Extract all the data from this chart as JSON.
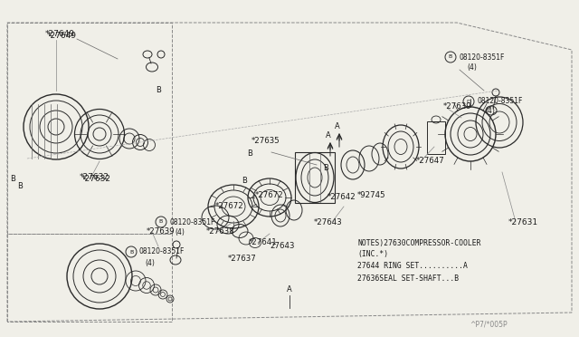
{
  "bg_color": "#f0efe8",
  "line_color": "#2a2a2a",
  "text_color": "#1a1a1a",
  "notes_lines": [
    "NOTES)27630COMPRESSOR-COOLER",
    "(INC.*)",
    "27644 RING SET..........A",
    "27636SEAL SET-SHAFT...B"
  ],
  "watermark": "^P7/*005P",
  "fig_w": 6.4,
  "fig_h": 3.72
}
